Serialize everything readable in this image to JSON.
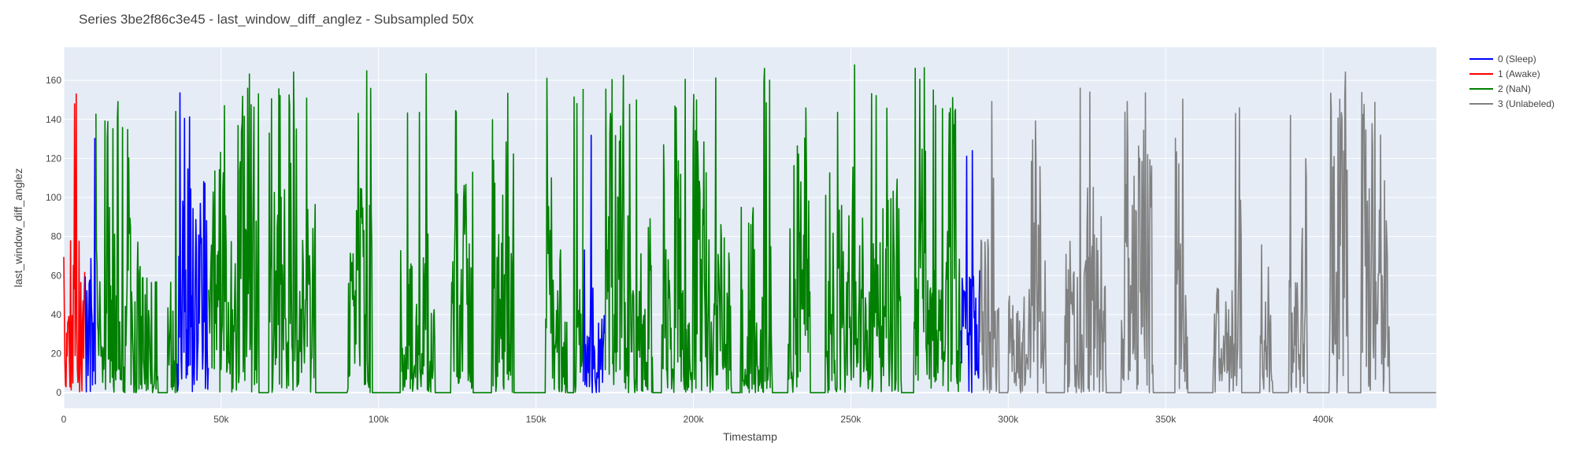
{
  "chart_data": {
    "type": "line",
    "title": "Series 3be2f86c3e45 - last_window_diff_anglez - Subsampled 50x",
    "xlabel": "Timestamp",
    "ylabel": "last_window_diff_anglez",
    "xlim": [
      0,
      436000
    ],
    "ylim": [
      -8,
      177
    ],
    "x_ticks": [
      0,
      50000,
      100000,
      150000,
      200000,
      250000,
      300000,
      350000,
      400000
    ],
    "x_tick_labels": [
      "0",
      "50k",
      "100k",
      "150k",
      "200k",
      "250k",
      "300k",
      "350k",
      "400k"
    ],
    "y_ticks": [
      0,
      20,
      40,
      60,
      80,
      100,
      120,
      140,
      160
    ],
    "y_tick_labels": [
      "0",
      "20",
      "40",
      "60",
      "80",
      "100",
      "120",
      "140",
      "160"
    ],
    "grid": true,
    "legend_position": "right",
    "background": "#e5ecf6",
    "series": [
      {
        "name": "0 (Sleep)",
        "color": "#0000ff"
      },
      {
        "name": "1 (Awake)",
        "color": "#ff0000"
      },
      {
        "name": "2 (NaN)",
        "color": "#008000"
      },
      {
        "name": "3 (Unlabeled)",
        "color": "#808080"
      }
    ],
    "segments": [
      {
        "series": 1,
        "start": 0,
        "end": 6800,
        "low": 0,
        "high": 163
      },
      {
        "series": 0,
        "start": 6800,
        "end": 10200,
        "low": 0,
        "high": 140
      },
      {
        "series": 2,
        "start": 10200,
        "end": 36000,
        "low": 0,
        "high": 152
      },
      {
        "series": 0,
        "start": 36000,
        "end": 46000,
        "low": 0,
        "high": 155
      },
      {
        "series": 2,
        "start": 46000,
        "end": 165000,
        "low": 0,
        "high": 166
      },
      {
        "series": 0,
        "start": 165000,
        "end": 172000,
        "low": 0,
        "high": 155
      },
      {
        "series": 2,
        "start": 172000,
        "end": 285000,
        "low": 0,
        "high": 168
      },
      {
        "series": 0,
        "start": 285000,
        "end": 291000,
        "low": 0,
        "high": 127
      },
      {
        "series": 3,
        "start": 291000,
        "end": 436000,
        "low": 0,
        "high": 165
      }
    ],
    "active_windows": [
      [
        0,
        30000
      ],
      [
        33000,
        62000
      ],
      [
        65000,
        80000
      ],
      [
        90000,
        98000
      ],
      [
        107000,
        118000
      ],
      [
        123000,
        130000
      ],
      [
        136000,
        143000
      ],
      [
        153000,
        160000
      ],
      [
        162000,
        187000
      ],
      [
        190000,
        212000
      ],
      [
        215000,
        225000
      ],
      [
        230000,
        237000
      ],
      [
        242000,
        266000
      ],
      [
        270000,
        297000
      ],
      [
        300000,
        312000
      ],
      [
        318000,
        331000
      ],
      [
        336000,
        346000
      ],
      [
        353000,
        357000
      ],
      [
        365000,
        374000
      ],
      [
        380000,
        384000
      ],
      [
        389000,
        395000
      ],
      [
        402000,
        408000
      ],
      [
        412000,
        423000
      ]
    ],
    "flat_tail": {
      "start": 421000,
      "end": 436000,
      "value": 0
    }
  }
}
